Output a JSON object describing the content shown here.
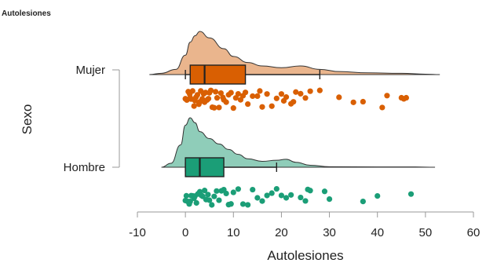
{
  "chart_data": {
    "type": "raincloud",
    "title": "Autolesiones",
    "xlabel": "Autolesiones",
    "ylabel": "Sexo",
    "xlim": [
      -10,
      60
    ],
    "xticks": [
      "-10",
      "0",
      "10",
      "20",
      "30",
      "40",
      "50",
      "60"
    ],
    "grid": false,
    "legend": "none",
    "groups": [
      {
        "name": "Mujer",
        "color": "#d95f02",
        "fill": "#eab58d",
        "box": {
          "whisker_low": 0,
          "q1": 1,
          "median": 4,
          "q3": 12.5,
          "whisker_high": 28
        },
        "density_x": [
          -7.5,
          -5,
          -2,
          0,
          1,
          2,
          3,
          5,
          8,
          10,
          13,
          16,
          20,
          24,
          28,
          32,
          38,
          45,
          50,
          53
        ],
        "density_y": [
          0,
          0.03,
          0.12,
          0.45,
          0.75,
          0.9,
          1.0,
          0.85,
          0.6,
          0.42,
          0.28,
          0.2,
          0.16,
          0.2,
          0.12,
          0.07,
          0.04,
          0.03,
          0.01,
          0
        ],
        "points": [
          0,
          0.3,
          0.6,
          0.9,
          1,
          1.2,
          1.5,
          1.8,
          2,
          2.2,
          2.5,
          2.8,
          3,
          3.2,
          3.5,
          3.8,
          4,
          4.2,
          4.5,
          4.8,
          5,
          5.3,
          5.6,
          6,
          6.3,
          6.6,
          7,
          7.4,
          7.8,
          8,
          8.5,
          9,
          9.5,
          10,
          10.5,
          11,
          11.5,
          12,
          12.5,
          13,
          14,
          15,
          15.5,
          16,
          17,
          18,
          19,
          20,
          20.5,
          21,
          22,
          22.5,
          23,
          24,
          25,
          26,
          28,
          32,
          35,
          37,
          41,
          42,
          45,
          45.5,
          46
        ]
      },
      {
        "name": "Hombre",
        "color": "#1b9e77",
        "fill": "#8fcdb9",
        "box": {
          "whisker_low": 0,
          "q1": 0,
          "median": 3,
          "q3": 8,
          "whisker_high": 19
        },
        "density_x": [
          -5,
          -3,
          -1,
          0,
          1,
          2,
          3,
          5,
          7,
          9,
          11,
          13,
          16,
          19,
          21,
          23,
          26,
          30,
          40,
          48,
          52
        ],
        "density_y": [
          0,
          0.08,
          0.45,
          0.85,
          1.0,
          0.9,
          0.72,
          0.58,
          0.47,
          0.36,
          0.26,
          0.17,
          0.12,
          0.14,
          0.16,
          0.1,
          0.04,
          0.01,
          0.005,
          0.005,
          0
        ],
        "points": [
          0,
          0.2,
          0.5,
          0.8,
          1,
          1.2,
          1.5,
          1.8,
          2,
          2.3,
          2.6,
          3,
          3.3,
          3.6,
          4,
          4.3,
          4.7,
          5,
          5.5,
          6,
          6.5,
          7,
          7.5,
          8,
          8.5,
          9,
          9.5,
          10,
          11,
          12,
          13,
          14,
          15,
          16,
          17,
          18,
          19,
          20,
          21,
          22,
          24,
          25,
          25.5,
          26,
          29,
          30,
          37,
          40,
          47
        ]
      }
    ]
  }
}
